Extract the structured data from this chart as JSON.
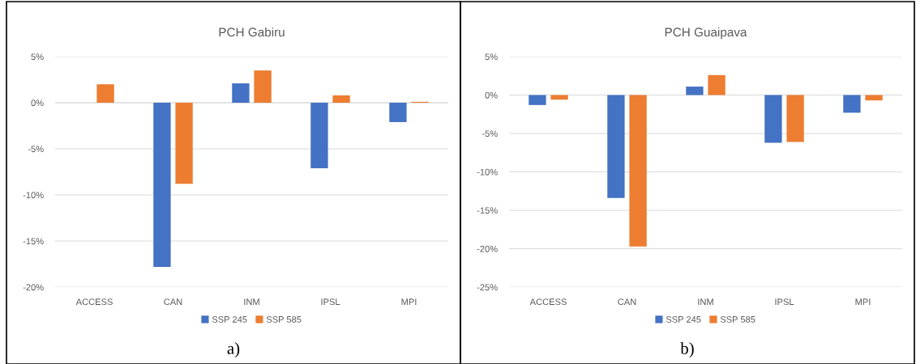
{
  "chart_data": [
    {
      "type": "bar",
      "title": "PCH Gabiru",
      "categories": [
        "ACCESS",
        "CAN",
        "INM",
        "IPSL",
        "MPI"
      ],
      "series": [
        {
          "name": "SSP 245",
          "color": "#4472c4",
          "values": [
            0.0,
            -17.8,
            2.1,
            -7.1,
            -2.1
          ]
        },
        {
          "name": "SSP 585",
          "color": "#ed7d31",
          "values": [
            2.0,
            -8.8,
            3.5,
            0.8,
            0.1
          ]
        }
      ],
      "ylim": [
        -20,
        5
      ],
      "yticks": [
        {
          "value": -20,
          "label": "-20%"
        },
        {
          "value": -15,
          "label": "-15%"
        },
        {
          "value": -10,
          "label": "-10%"
        },
        {
          "value": -5,
          "label": "-5%"
        },
        {
          "value": 0,
          "label": "0%"
        },
        {
          "value": 5,
          "label": "5%"
        }
      ],
      "grid": "y",
      "legend": "bottom",
      "annotations": [
        "a)"
      ]
    },
    {
      "type": "bar",
      "title": "PCH Guaipava",
      "categories": [
        "ACCESS",
        "CAN",
        "INM",
        "IPSL",
        "MPI"
      ],
      "series": [
        {
          "name": "SSP 245",
          "color": "#4472c4",
          "values": [
            -1.3,
            -13.4,
            1.1,
            -6.2,
            -2.3
          ]
        },
        {
          "name": "SSP 585",
          "color": "#ed7d31",
          "values": [
            -0.6,
            -19.7,
            2.6,
            -6.1,
            -0.7
          ]
        }
      ],
      "ylim": [
        -25,
        5
      ],
      "yticks": [
        {
          "value": -25,
          "label": "-25%"
        },
        {
          "value": -20,
          "label": "-20%"
        },
        {
          "value": -15,
          "label": "-15%"
        },
        {
          "value": -10,
          "label": "-10%"
        },
        {
          "value": -5,
          "label": "-5%"
        },
        {
          "value": 0,
          "label": "0%"
        },
        {
          "value": 5,
          "label": "5%"
        }
      ],
      "grid": "y",
      "legend": "bottom",
      "annotations": [
        "b)"
      ]
    }
  ]
}
